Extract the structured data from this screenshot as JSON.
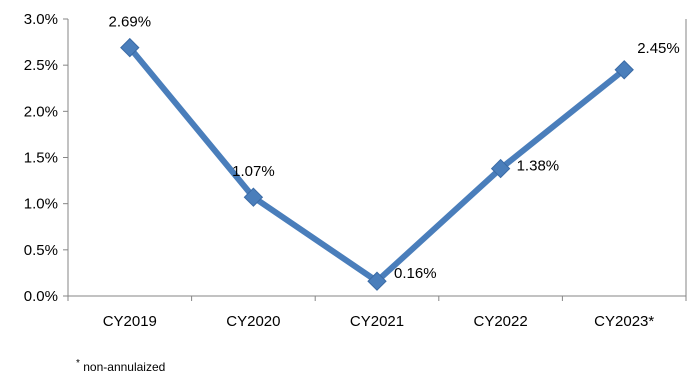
{
  "chart_data": {
    "type": "line",
    "title": "",
    "xlabel": "",
    "ylabel": "",
    "categories": [
      "CY2019",
      "CY2020",
      "CY2021",
      "CY2022",
      "CY2023*"
    ],
    "series": [
      {
        "values": [
          2.69,
          1.07,
          0.16,
          1.38,
          2.45
        ],
        "data_labels": [
          "2.69%",
          "1.07%",
          "0.16%",
          "1.38%",
          "2.45%"
        ],
        "color": "#4a7ebb",
        "marker": "diamond"
      }
    ],
    "ylim": [
      0.0,
      3.0
    ],
    "yticks": [
      0.0,
      0.5,
      1.0,
      1.5,
      2.0,
      2.5,
      3.0
    ],
    "ytick_labels": [
      "0.0%",
      "0.5%",
      "1.0%",
      "1.5%",
      "2.0%",
      "2.5%",
      "3.0%"
    ],
    "grid": false,
    "legend": "none"
  },
  "footnote": "non-annulaized",
  "footnote_marker": "*"
}
